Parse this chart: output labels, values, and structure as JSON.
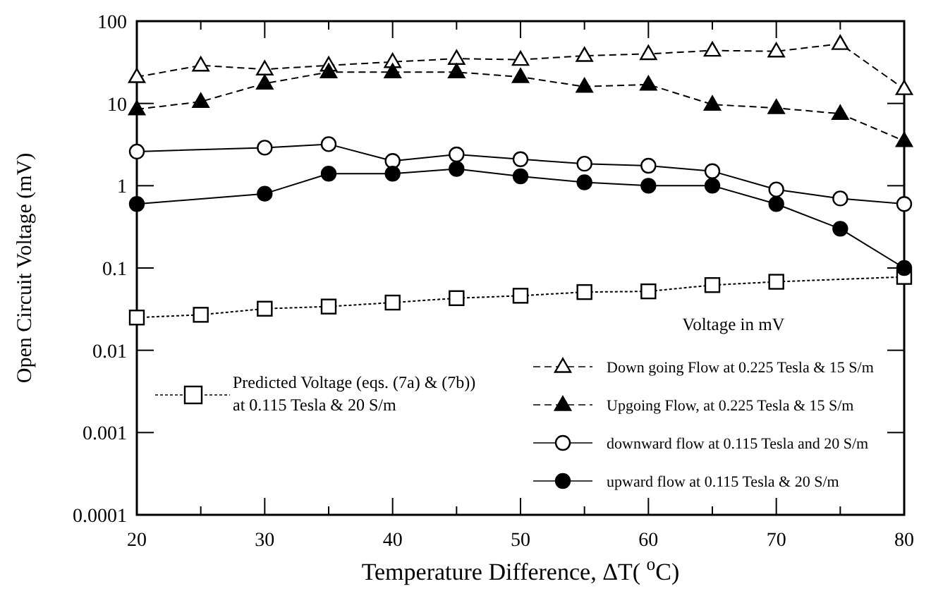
{
  "chart_data": {
    "type": "line",
    "xlabel": "Temperature Difference,  ΔT( $^{o}$C)",
    "ylabel": "Open Circuit Voltage (mV)",
    "legend_title": "Voltage in mV",
    "log": "y",
    "grid": false,
    "legend": "bottom",
    "xlim": [
      20,
      80
    ],
    "xticks": [
      20,
      {
        "value": 25,
        "label": null
      },
      30,
      {
        "value": 35,
        "label": null
      },
      40,
      {
        "value": 45,
        "label": null
      },
      50,
      {
        "value": 55,
        "label": null
      },
      60,
      {
        "value": 65,
        "label": null
      },
      70,
      {
        "value": 75,
        "label": null
      },
      80
    ],
    "ylim": [
      0.0001,
      100
    ],
    "yticks": [
      0.0001,
      0.001,
      0.01,
      0.1,
      1,
      10,
      100
    ],
    "series": [
      {
        "name": "Predicted Voltage (eqs. (7a) & (7b)) at 0.115 Tesla & 20 S/m",
        "color": "#ffffff",
        "marker": "square",
        "line_style": "dotted",
        "x": [
          20,
          25,
          30,
          35,
          40,
          45,
          50,
          55,
          60,
          65,
          70,
          80
        ],
        "values": [
          0.025,
          0.027,
          0.032,
          0.034,
          0.038,
          0.043,
          0.046,
          0.051,
          0.052,
          0.062,
          0.068,
          0.078
        ]
      },
      {
        "name": "Down going Flow at 0.225 Tesla & 15 S/m",
        "color": "#ffffff",
        "marker": "triangle",
        "line_style": "dashed",
        "x": [
          20,
          25,
          30,
          35,
          40,
          45,
          50,
          55,
          60,
          65,
          70,
          75,
          80
        ],
        "values": [
          21,
          29,
          26,
          29,
          32,
          35,
          34,
          38,
          40,
          44,
          43,
          53,
          15
        ]
      },
      {
        "name": "Upgoing Flow, at 0.225 Tesla & 15 S/m",
        "color": "#000000",
        "marker": "triangle",
        "line_style": "dashed",
        "x": [
          20,
          25,
          30,
          35,
          40,
          45,
          50,
          55,
          60,
          65,
          70,
          75,
          80
        ],
        "values": [
          8.5,
          10.5,
          17.5,
          24,
          24,
          24,
          21,
          16,
          17,
          9.7,
          8.8,
          7.5,
          3.5
        ]
      },
      {
        "name": "downward flow at 0.115 Tesla and 20 S/m",
        "color": "#ffffff",
        "marker": "circle",
        "line_style": "solid",
        "x": [
          20,
          30,
          35,
          40,
          45,
          50,
          55,
          60,
          65,
          70,
          75,
          80
        ],
        "values": [
          2.6,
          2.9,
          3.2,
          2.0,
          2.4,
          2.1,
          1.85,
          1.75,
          1.5,
          0.9,
          0.7,
          0.6
        ]
      },
      {
        "name": "upward flow at 0.115 Tesla & 20 S/m",
        "color": "#000000",
        "marker": "circle",
        "line_style": "solid",
        "x": [
          20,
          30,
          35,
          40,
          45,
          50,
          55,
          60,
          65,
          70,
          75,
          80
        ],
        "values": [
          0.6,
          0.8,
          1.4,
          1.4,
          1.6,
          1.3,
          1.1,
          1.0,
          1.0,
          0.6,
          0.3,
          0.1
        ]
      }
    ]
  }
}
